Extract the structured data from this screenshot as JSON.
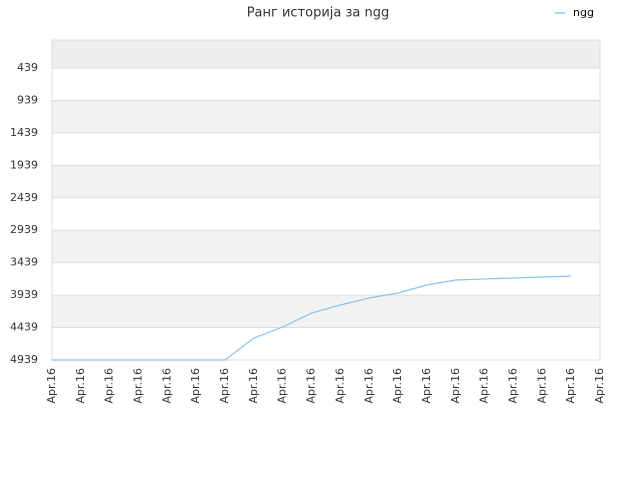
{
  "chart_data": {
    "type": "line",
    "title": "Ранг историја за ngg",
    "categories": [
      "Apr.16",
      "Apr.16",
      "Apr.16",
      "Apr.16",
      "Apr.16",
      "Apr.16",
      "Apr.16",
      "Apr.16",
      "Apr.16",
      "Apr.16",
      "Apr.16",
      "Apr.16",
      "Apr.16",
      "Apr.16",
      "Apr.16",
      "Apr.16",
      "Apr.16",
      "Apr.16",
      "Apr.16",
      "Apr.16"
    ],
    "series": [
      {
        "name": "ngg",
        "color": "#88c2f0",
        "values": [
          4939,
          4939,
          4939,
          4939,
          4939,
          4939,
          4939,
          4600,
          4430,
          4215,
          4091,
          3983,
          3906,
          3783,
          3706,
          3690,
          3675,
          3660,
          3645,
          null
        ]
      }
    ],
    "ylim": [
      4939,
      7
    ],
    "yticks": [
      439,
      939,
      1439,
      1939,
      2439,
      2939,
      3439,
      3939,
      4439,
      4939
    ],
    "grid": true,
    "legend": "top-right"
  }
}
